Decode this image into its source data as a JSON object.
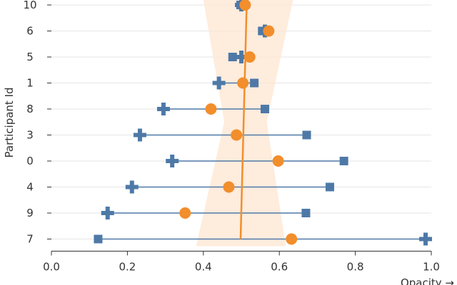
{
  "chart_data": {
    "type": "scatter",
    "title": "",
    "xlabel": "Opacity →",
    "ylabel": "Participant Id",
    "xlim": [
      0,
      1
    ],
    "x_ticks": [
      "0.0",
      "0.2",
      "0.4",
      "0.6",
      "0.8",
      "1.0"
    ],
    "x_tick_values": [
      0,
      0.2,
      0.4,
      0.6,
      0.8,
      1.0
    ],
    "categories": [
      "10",
      "6",
      "5",
      "1",
      "8",
      "3",
      "0",
      "4",
      "9",
      "7"
    ],
    "grid": "horizontal",
    "series": [
      {
        "name": "square",
        "marker": "square",
        "color": "#4e79a7",
        "values": [
          0.498,
          0.555,
          0.477,
          0.534,
          0.562,
          0.672,
          0.77,
          0.733,
          0.67,
          0.123
        ]
      },
      {
        "name": "cross",
        "marker": "cross",
        "color": "#4e79a7",
        "values": [
          0.5,
          0.562,
          0.5,
          0.441,
          0.295,
          0.233,
          0.318,
          0.212,
          0.148,
          0.985
        ]
      },
      {
        "name": "circle",
        "marker": "circle",
        "color": "#f28e2b",
        "values": [
          0.51,
          0.572,
          0.522,
          0.504,
          0.42,
          0.487,
          0.597,
          0.467,
          0.352,
          0.632
        ]
      }
    ],
    "regression": {
      "color": "#f28e2b",
      "band_color": "#fde6d2",
      "points": [
        {
          "category": "10",
          "value": 0.514,
          "ci_low": 0.4,
          "ci_high": 0.636
        },
        {
          "category": "7",
          "value": 0.498,
          "ci_low": 0.381,
          "ci_high": 0.617
        }
      ],
      "band_mid": {
        "ci_low": 0.455,
        "ci_high": 0.567
      }
    }
  }
}
